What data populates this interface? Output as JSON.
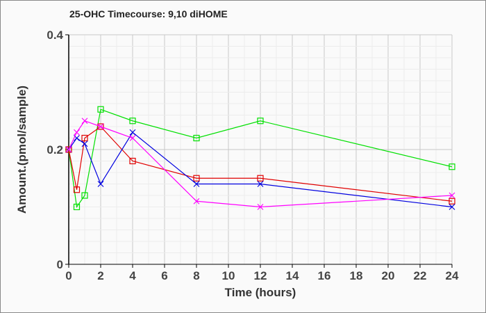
{
  "chart_data": {
    "type": "line",
    "title": "25-OHC Timecourse: 9,10 diHOME",
    "xlabel": "Time (hours)",
    "ylabel": "Amount.(pmol/sample)",
    "xlim": [
      0,
      24
    ],
    "ylim": [
      0,
      0.4
    ],
    "xticks": [
      "0",
      "2",
      "4",
      "6",
      "8",
      "10",
      "12",
      "14",
      "16",
      "18",
      "20",
      "22",
      "24"
    ],
    "yticks": [
      "0",
      "0.2",
      "0.4"
    ],
    "grid": true,
    "x": [
      0,
      0.5,
      1,
      2,
      4,
      8,
      12,
      24
    ],
    "series": [
      {
        "name": "green",
        "color": "#00e000",
        "marker": "square",
        "values": [
          0.2,
          0.1,
          0.12,
          0.27,
          0.25,
          0.22,
          0.25,
          0.17
        ]
      },
      {
        "name": "red",
        "color": "#e00000",
        "marker": "square",
        "values": [
          0.2,
          0.13,
          0.22,
          0.24,
          0.18,
          0.15,
          0.15,
          0.11
        ]
      },
      {
        "name": "blue",
        "color": "#0000e0",
        "marker": "x",
        "values": [
          0.2,
          0.22,
          0.21,
          0.14,
          0.23,
          0.14,
          0.14,
          0.1
        ]
      },
      {
        "name": "magenta",
        "color": "#ff00ff",
        "marker": "x",
        "values": [
          0.2,
          0.23,
          0.25,
          0.24,
          0.22,
          0.11,
          0.1,
          0.12
        ]
      }
    ]
  }
}
